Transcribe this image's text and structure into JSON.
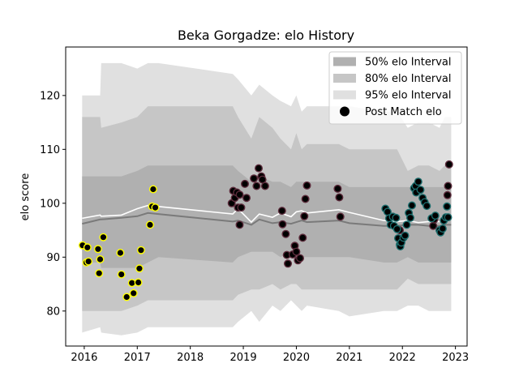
{
  "chart_data": {
    "type": "area",
    "title": "Beka Gorgadze: elo History",
    "xlabel": "",
    "ylabel": "elo score",
    "xlim": [
      2015.65,
      2023.22
    ],
    "ylim": [
      73.5,
      129
    ],
    "xticks": [
      2016,
      2017,
      2018,
      2019,
      2020,
      2021,
      2022,
      2023
    ],
    "yticks": [
      80,
      90,
      100,
      110,
      120
    ],
    "legend": {
      "position": "top-right",
      "entries": [
        {
          "label": "50% elo Interval",
          "kind": "band",
          "color": "#b0b0b0"
        },
        {
          "label": "80% elo Interval",
          "kind": "band",
          "color": "#c6c6c6"
        },
        {
          "label": "95% elo Interval",
          "kind": "band",
          "color": "#e0e0e0"
        },
        {
          "label": "Post Match elo",
          "kind": "marker",
          "color": "#000000"
        }
      ]
    },
    "colors": {
      "band95": "#e0e0e0",
      "band80": "#c6c6c6",
      "band50": "#b0b0b0",
      "median": "#7a7a7a",
      "mean": "#ffffff"
    },
    "bands": {
      "x": [
        2015.96,
        2016.3,
        2016.32,
        2016.7,
        2017.0,
        2017.2,
        2017.4,
        2018.8,
        2018.9,
        2019.15,
        2019.3,
        2019.55,
        2019.7,
        2019.9,
        2020.0,
        2020.1,
        2020.2,
        2020.8,
        2021.0,
        2021.65,
        2021.9,
        2022.1,
        2022.3,
        2022.5,
        2022.7,
        2022.8,
        2022.92
      ],
      "p95_lo": [
        76,
        77,
        76,
        75.5,
        76,
        77,
        77,
        77,
        78,
        80,
        78,
        81,
        80,
        82,
        81,
        80,
        81,
        80,
        79,
        80,
        80,
        81,
        81,
        80,
        80,
        80,
        80
      ],
      "p95_hi": [
        120,
        120,
        126,
        126,
        125,
        126,
        126,
        124,
        123,
        120,
        122,
        120,
        119,
        118,
        120,
        117,
        118,
        118,
        118,
        117,
        117,
        114,
        115,
        115,
        114,
        116,
        116
      ],
      "p80_lo": [
        80,
        80,
        80,
        80,
        81,
        82,
        82,
        82,
        83,
        84,
        84,
        85,
        84,
        85,
        85,
        84,
        84,
        84,
        84,
        84,
        84,
        86,
        85,
        85,
        85,
        85,
        85
      ],
      "p80_hi": [
        116,
        116,
        114,
        115,
        116,
        118,
        118,
        118,
        116,
        112,
        116,
        114,
        112,
        110,
        113,
        110,
        111,
        111,
        110,
        110,
        110,
        106,
        107,
        107,
        106,
        107,
        108
      ],
      "p50_lo": [
        89,
        89,
        88,
        88,
        88,
        89,
        90,
        89,
        90,
        91,
        91,
        91,
        90,
        91,
        91,
        90,
        90,
        90,
        90,
        89,
        89,
        90,
        89,
        89,
        89,
        89,
        89
      ],
      "p50_hi": [
        105,
        105,
        105,
        105,
        106,
        107,
        107,
        107,
        106,
        104,
        105,
        104,
        104,
        103,
        104,
        104,
        104,
        104,
        103,
        103,
        103,
        103,
        103,
        103,
        103,
        103,
        104
      ],
      "median": [
        96.2,
        97,
        97,
        97.3,
        97.6,
        98.2,
        98,
        96.6,
        96.8,
        96,
        97,
        96.3,
        96.5,
        96.2,
        96.5,
        96.8,
        96.5,
        96.8,
        96.3,
        95.8,
        95.8,
        96,
        96,
        95.8,
        95.8,
        96,
        96
      ],
      "mean": [
        97.2,
        97.8,
        97.6,
        97.8,
        99,
        99.6,
        99.4,
        98,
        99,
        96.5,
        98,
        97.4,
        98.2,
        97.5,
        98.4,
        98.6,
        98.2,
        98.8,
        98.3,
        96.8,
        96.6,
        96.8,
        96.4,
        96.6,
        96.6,
        97.4,
        97.4
      ]
    },
    "series": [
      {
        "color": "#ffff00",
        "points": [
          [
            2015.97,
            92.2
          ],
          [
            2016.04,
            89
          ],
          [
            2016.06,
            91.8
          ],
          [
            2016.08,
            89.2
          ],
          [
            2016.26,
            91.5
          ],
          [
            2016.28,
            87
          ],
          [
            2016.3,
            89.6
          ],
          [
            2016.36,
            93.7
          ],
          [
            2016.68,
            90.8
          ],
          [
            2016.7,
            86.8
          ],
          [
            2016.8,
            82.6
          ],
          [
            2016.9,
            85.2
          ],
          [
            2016.93,
            83.3
          ],
          [
            2017.02,
            85.3
          ],
          [
            2017.04,
            87.9
          ],
          [
            2017.07,
            91.3
          ],
          [
            2017.24,
            96
          ],
          [
            2017.28,
            99.4
          ],
          [
            2017.3,
            102.6
          ],
          [
            2017.34,
            99.2
          ]
        ]
      },
      {
        "color": "#5a2a3a",
        "points": [
          [
            2018.78,
            100
          ],
          [
            2018.81,
            102.3
          ],
          [
            2018.84,
            101
          ],
          [
            2018.88,
            102
          ],
          [
            2018.9,
            99.2
          ],
          [
            2018.93,
            101.6
          ],
          [
            2018.93,
            96
          ],
          [
            2018.96,
            99.2
          ],
          [
            2019.03,
            103.6
          ],
          [
            2019.06,
            101
          ],
          [
            2019.2,
            104.6
          ],
          [
            2019.25,
            103.2
          ],
          [
            2019.29,
            106.5
          ],
          [
            2019.34,
            105
          ],
          [
            2019.36,
            104.4
          ],
          [
            2019.41,
            103.2
          ],
          [
            2019.73,
            98.6
          ],
          [
            2019.74,
            96.1
          ],
          [
            2019.8,
            94.3
          ],
          [
            2019.82,
            90.4
          ],
          [
            2019.84,
            88.8
          ],
          [
            2019.93,
            90.5
          ],
          [
            2019.97,
            92.1
          ],
          [
            2020.0,
            91
          ],
          [
            2020.03,
            89.4
          ],
          [
            2020.07,
            89.8
          ],
          [
            2020.12,
            93.6
          ],
          [
            2020.15,
            97.6
          ],
          [
            2020.17,
            100.8
          ],
          [
            2020.2,
            103.3
          ],
          [
            2020.78,
            102.7
          ],
          [
            2020.81,
            101.1
          ],
          [
            2020.83,
            97.5
          ],
          [
            2021.95,
            95
          ],
          [
            2022.58,
            95.8
          ],
          [
            2022.6,
            97
          ],
          [
            2022.85,
            101.5
          ],
          [
            2022.86,
            103.2
          ],
          [
            2022.88,
            107.2
          ]
        ]
      },
      {
        "color": "#1a6b6b",
        "points": [
          [
            2021.68,
            99
          ],
          [
            2021.72,
            98.4
          ],
          [
            2021.75,
            97.2
          ],
          [
            2021.78,
            96
          ],
          [
            2021.82,
            97.5
          ],
          [
            2021.84,
            95.8
          ],
          [
            2021.88,
            97.3
          ],
          [
            2021.9,
            95.2
          ],
          [
            2021.92,
            93.5
          ],
          [
            2021.95,
            92.3
          ],
          [
            2021.96,
            92
          ],
          [
            2021.98,
            92.7
          ],
          [
            2022.02,
            93.6
          ],
          [
            2022.05,
            94
          ],
          [
            2022.08,
            96
          ],
          [
            2022.12,
            98.2
          ],
          [
            2022.15,
            97.3
          ],
          [
            2022.18,
            99.6
          ],
          [
            2022.22,
            102.8
          ],
          [
            2022.25,
            103.2
          ],
          [
            2022.26,
            102
          ],
          [
            2022.3,
            104
          ],
          [
            2022.34,
            102.5
          ],
          [
            2022.38,
            101
          ],
          [
            2022.42,
            100.2
          ],
          [
            2022.46,
            99.5
          ],
          [
            2022.55,
            97.2
          ],
          [
            2022.62,
            97.7
          ],
          [
            2022.7,
            95
          ],
          [
            2022.72,
            94.6
          ],
          [
            2022.76,
            95.3
          ],
          [
            2022.78,
            96.8
          ],
          [
            2022.82,
            97.4
          ],
          [
            2022.84,
            99.4
          ],
          [
            2022.86,
            97.4
          ]
        ]
      }
    ]
  }
}
